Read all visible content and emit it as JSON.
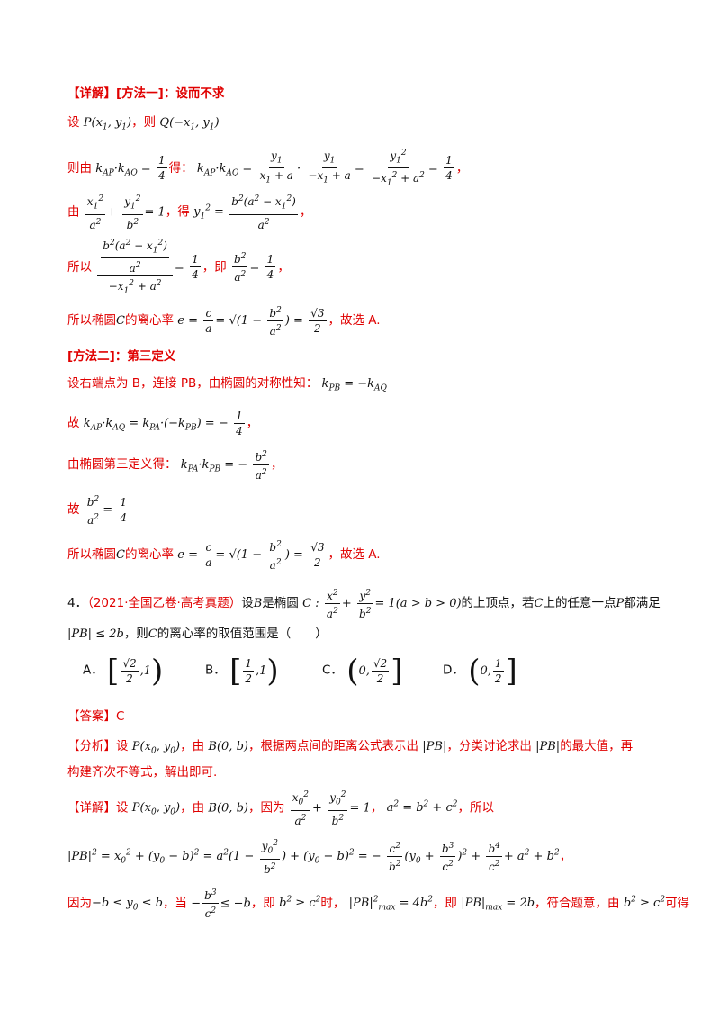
{
  "method1": {
    "heading_tag": "【详解】",
    "heading": "[方法一]：设而不求",
    "line_set_prefix": "设",
    "line_set_mid": "，则",
    "line_k_prefix": "则由",
    "line_k_mid": "得：",
    "line_ellipse_prefix": "由",
    "line_ellipse_mid": "，得",
    "line_so_prefix": "所以",
    "line_so_mid": "，即",
    "line_e_prefix": "所以椭圆",
    "line_e_mid": "的离心率",
    "line_e_suffix": "，故选 A."
  },
  "method2": {
    "heading": "[方法二]：第三定义",
    "line_endpoint": "设右端点为 B，连接 PB，由椭圆的对称性知：",
    "line_therefore_prefix": "故",
    "line_third_def": "由椭圆第三定义得：",
    "line_therefore2_prefix": "故",
    "line_e_prefix": "所以椭圆",
    "line_e_mid": "的离心率",
    "line_e_suffix": "，故选 A."
  },
  "question4": {
    "number": "4．",
    "source": "（2021·全国乙卷·高考真题）",
    "text_1": "设",
    "text_2": "是椭圆",
    "text_3": "的上顶点，若",
    "text_4": "上的任意一点",
    "text_5": "都满足",
    "text_6": "，则",
    "text_7": "的离心率的取值范围是（　　）",
    "choices": [
      "A．",
      "B．",
      "C．",
      "D．"
    ]
  },
  "answer": {
    "tag": "【答案】",
    "value": "C"
  },
  "analysis": {
    "tag": "【分析】",
    "text_1": "设",
    "text_2": "，由",
    "text_3": "，根据两点间的距离公式表示出",
    "text_4": "，分类讨论求出",
    "text_5": "的最大值，再",
    "text_6": "构建齐次不等式，解出即可."
  },
  "detail": {
    "tag": "【详解】",
    "text_1": "设",
    "text_2": "，由",
    "text_3": "，因为",
    "text_4": "，所以",
    "text_because": "因为",
    "text_when": "，当",
    "text_ie": "，即",
    "text_time": "时，",
    "text_ie2": "，即",
    "text_fit": "，符合题意，由",
    "text_get": "可得"
  }
}
